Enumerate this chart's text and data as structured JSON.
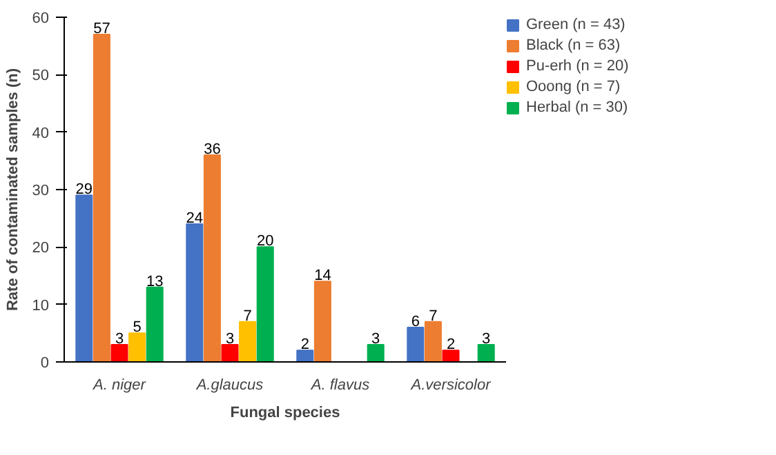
{
  "chart_data": {
    "type": "bar",
    "xlabel": "Fungal species",
    "ylabel": "Rate of contaminated samples (n)",
    "categories": [
      "A. niger",
      "A.glaucus",
      "A. flavus",
      "A.versicolor"
    ],
    "series": [
      {
        "name": "Green (n = 43)",
        "color": "#4472c4",
        "values": [
          29,
          24,
          2,
          6
        ]
      },
      {
        "name": "Black (n = 63)",
        "color": "#ed7d31",
        "values": [
          57,
          36,
          14,
          7
        ]
      },
      {
        "name": "Pu-erh (n = 20)",
        "color": "#ff0000",
        "values": [
          3,
          3,
          null,
          2
        ]
      },
      {
        "name": "Ooong (n = 7)",
        "color": "#ffc000",
        "values": [
          5,
          7,
          null,
          null
        ]
      },
      {
        "name": "Herbal (n = 30)",
        "color": "#00b050",
        "values": [
          13,
          20,
          3,
          3
        ]
      }
    ],
    "ylim": [
      0,
      60
    ],
    "yticks": [
      0,
      10,
      20,
      30,
      40,
      50,
      60
    ],
    "grid": false,
    "legend": "right",
    "data_labels": true
  }
}
